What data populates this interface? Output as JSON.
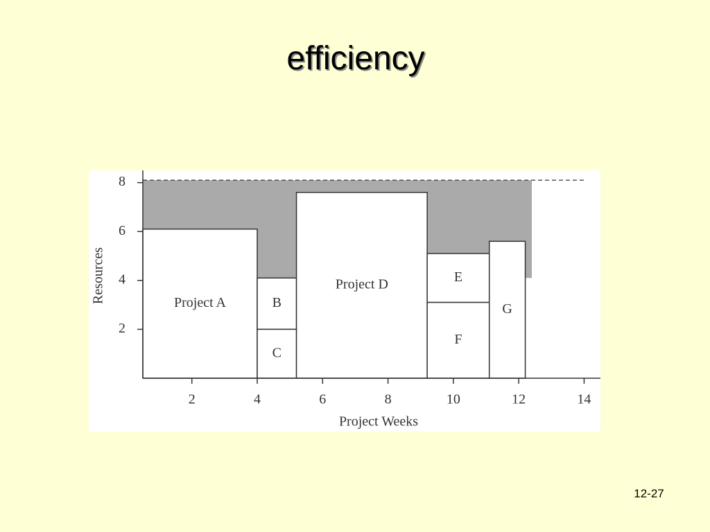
{
  "title": "efficiency",
  "page_number": "12-27",
  "chart_data": {
    "type": "block",
    "xlabel": "Project Weeks",
    "ylabel": "Resources",
    "xlim": [
      0.5,
      14.5
    ],
    "ylim": [
      0,
      8.5
    ],
    "xticks": [
      2,
      4,
      6,
      8,
      10,
      12,
      14
    ],
    "yticks": [
      2,
      4,
      6,
      8
    ],
    "capacity": {
      "value": 8.1,
      "x": [
        0.5,
        14
      ]
    },
    "slack": {
      "x": [
        0.5,
        12.4
      ],
      "y": [
        4.1,
        8.1
      ],
      "color": "#aaaaaa"
    },
    "blocks": [
      {
        "name": "Project A",
        "x": [
          0.5,
          4
        ],
        "y": [
          0,
          6.1
        ]
      },
      {
        "name": "B",
        "x": [
          4,
          5.2
        ],
        "y": [
          2,
          4.1
        ]
      },
      {
        "name": "C",
        "x": [
          4,
          5.2
        ],
        "y": [
          0,
          2
        ]
      },
      {
        "name": "Project D",
        "x": [
          5.2,
          9.2
        ],
        "y": [
          0,
          7.6
        ]
      },
      {
        "name": "E",
        "x": [
          9.2,
          11.1
        ],
        "y": [
          3.1,
          5.1
        ]
      },
      {
        "name": "F",
        "x": [
          9.2,
          11.1
        ],
        "y": [
          0,
          3.1
        ]
      },
      {
        "name": "G",
        "x": [
          11.1,
          12.2
        ],
        "y": [
          0,
          5.6
        ]
      }
    ]
  }
}
